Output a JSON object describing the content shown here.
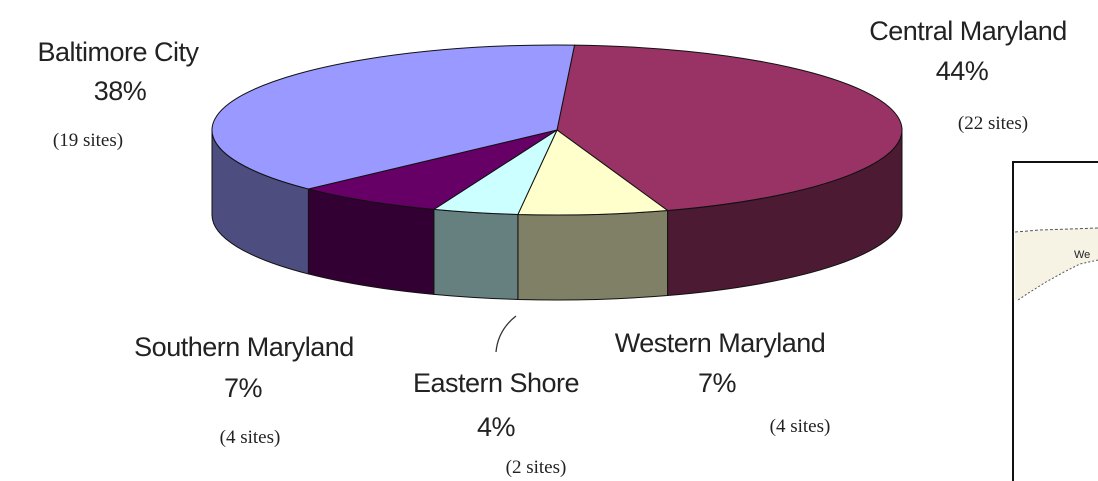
{
  "chart_data": {
    "type": "pie",
    "title": "",
    "slices": [
      {
        "name": "Central Maryland",
        "percent": 44,
        "percent_label": "44%",
        "sites": 22,
        "sites_label": "(22 sites)",
        "color": "#993366"
      },
      {
        "name": "Western Maryland",
        "percent": 7,
        "percent_label": "7%",
        "sites": 4,
        "sites_label": "(4 sites)",
        "color": "#FFFFCC"
      },
      {
        "name": "Eastern Shore",
        "percent": 4,
        "percent_label": "4%",
        "sites": 2,
        "sites_label": "(2 sites)",
        "color": "#CCFFFF"
      },
      {
        "name": "Southern Maryland",
        "percent": 7,
        "percent_label": "7%",
        "sites": 4,
        "sites_label": "(4 sites)",
        "color": "#660066"
      },
      {
        "name": "Baltimore City",
        "percent": 38,
        "percent_label": "38%",
        "sites": 19,
        "sites_label": "(19 sites)",
        "color": "#9999FF"
      }
    ],
    "three_d": true,
    "legend": "none"
  },
  "map_fragment": {
    "label": "We"
  }
}
